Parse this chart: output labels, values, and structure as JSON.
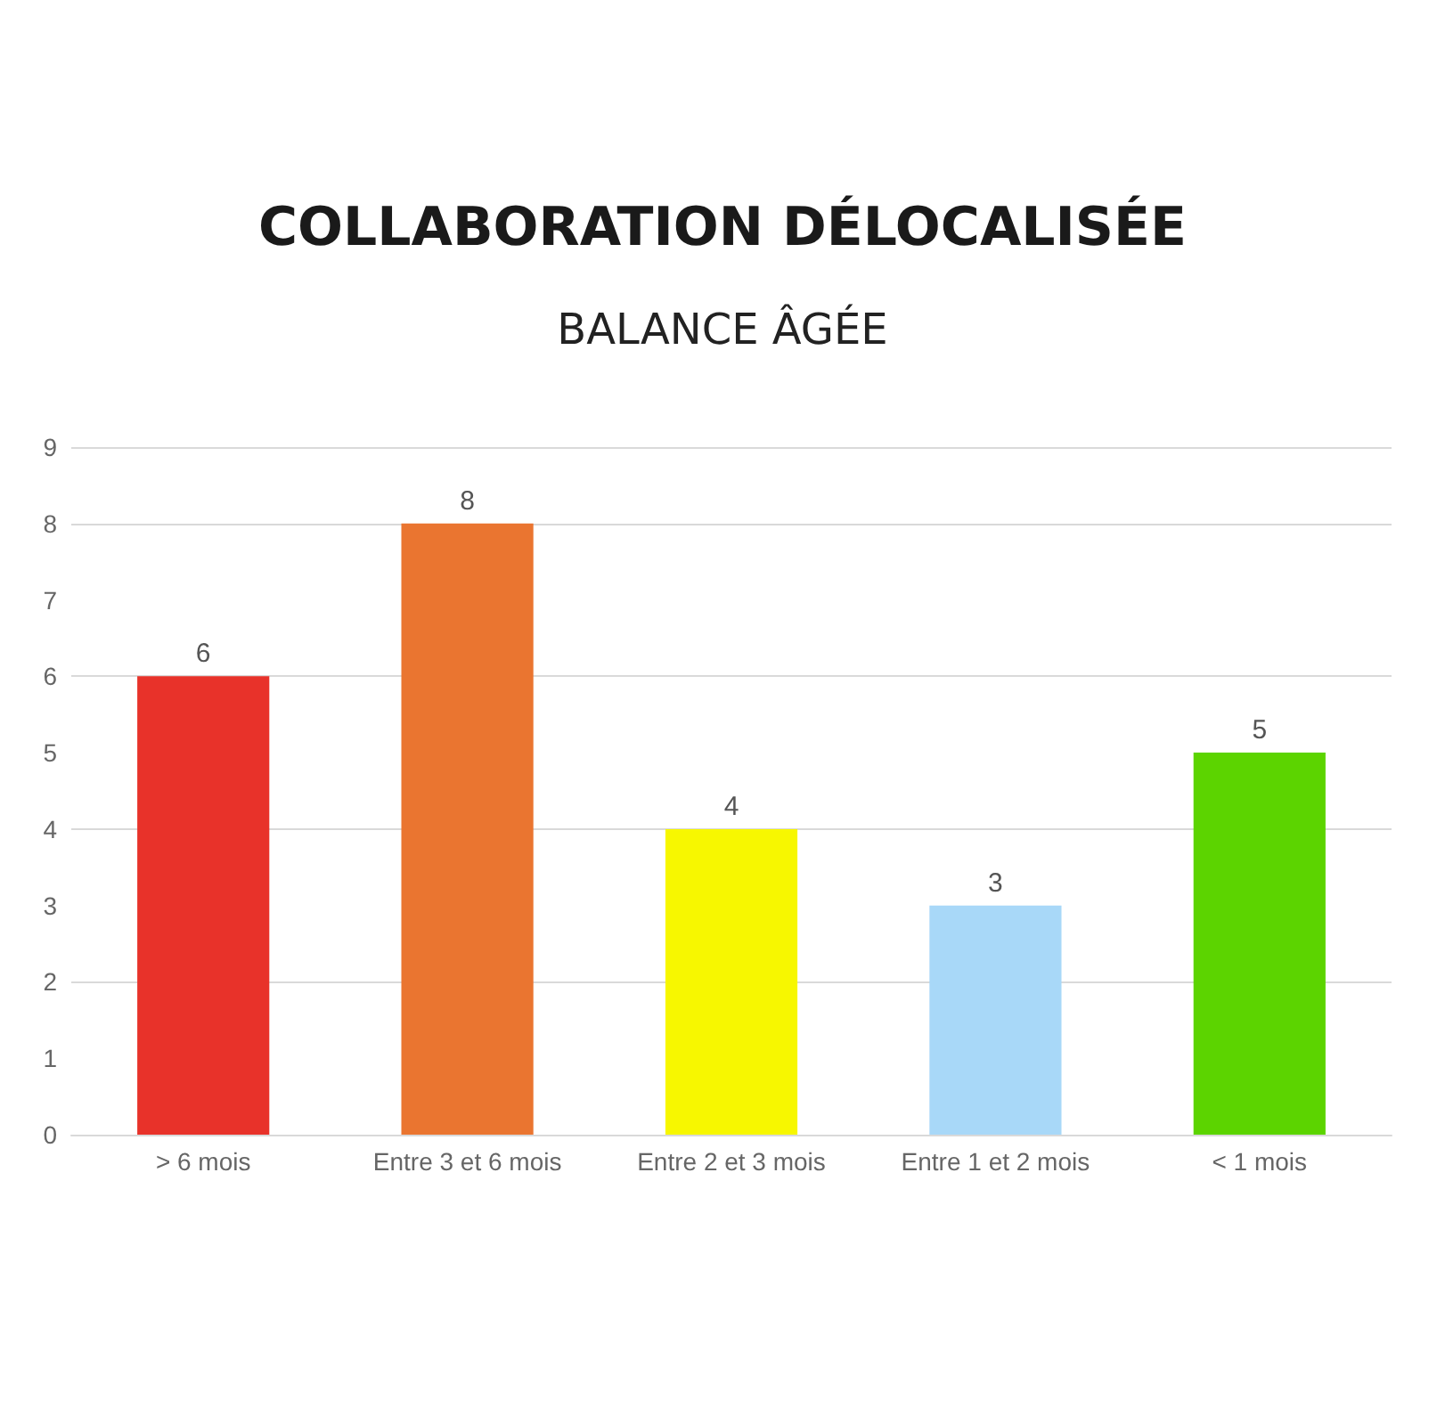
{
  "chart_data": {
    "type": "bar",
    "title": "COLLABORATION DÉLOCALISÉE",
    "subtitle": "BALANCE ÂGÉE",
    "categories": [
      "> 6 mois",
      "Entre 3 et 6 mois",
      "Entre 2 et 3 mois",
      "Entre 1 et 2 mois",
      "< 1 mois"
    ],
    "values": [
      6,
      8,
      4,
      3,
      5
    ],
    "colors": [
      "#e8322a",
      "#ea7530",
      "#f7f700",
      "#a8d8f8",
      "#5cd400"
    ],
    "ylim": [
      0,
      9
    ],
    "yticks": [
      0,
      1,
      2,
      3,
      4,
      5,
      6,
      7,
      8,
      9
    ],
    "grid": "y",
    "data_labels": true
  }
}
